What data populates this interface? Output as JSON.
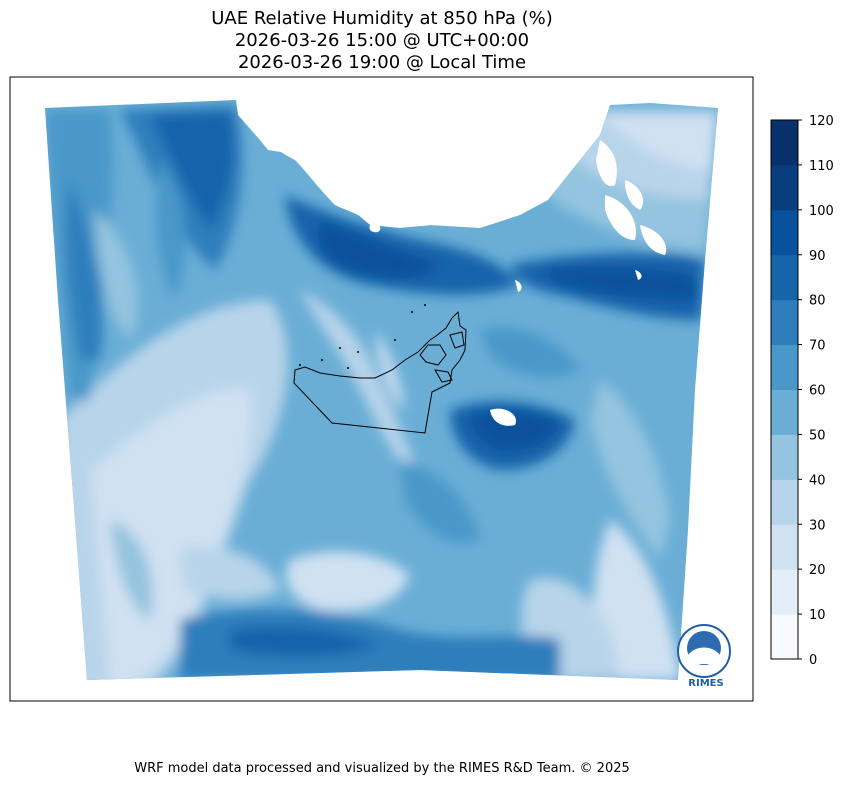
{
  "title": {
    "line1": "UAE Relative Humidity at 850 hPa (%)",
    "line2": "2026-03-26 15:00 @ UTC+00:00",
    "line3": "2026-03-26 19:00 @ Local Time"
  },
  "colorbar": {
    "ticks": [
      "0",
      "10",
      "20",
      "30",
      "40",
      "50",
      "60",
      "70",
      "80",
      "90",
      "100",
      "110",
      "120"
    ],
    "colors": [
      "#f7fbff",
      "#e3eef9",
      "#d0e1f2",
      "#b7d4ea",
      "#94c4df",
      "#6aaed6",
      "#4a98c9",
      "#2e7ebc",
      "#1764ab",
      "#08519c",
      "#083e80",
      "#08306b"
    ]
  },
  "logo": {
    "text": "RIMES"
  },
  "credit": "WRF model data processed and visualized by the RIMES R&D Team. © 2025"
}
